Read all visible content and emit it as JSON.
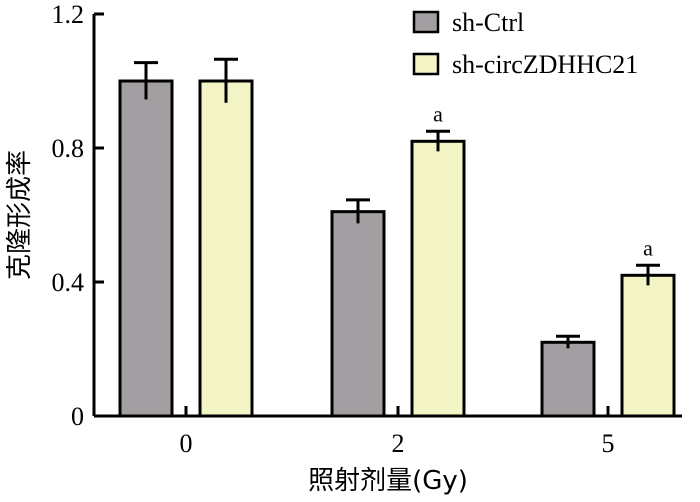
{
  "chart_data": {
    "type": "bar",
    "xlabel": "照射剂量(Gy)",
    "ylabel": "克隆形成率",
    "categories": [
      "0",
      "2",
      "5"
    ],
    "ylim": [
      0,
      1.2
    ],
    "yticks": [
      "0",
      "0.4",
      "0.8",
      "1.2"
    ],
    "legend_position": "top-right",
    "series": [
      {
        "name": "sh-Ctrl",
        "color": "#a39ea1",
        "values": [
          1.0,
          0.61,
          0.22
        ],
        "errors": [
          0.055,
          0.035,
          0.018
        ]
      },
      {
        "name": "sh-circZDHHC21",
        "color": "#f3f4c6",
        "values": [
          1.0,
          0.82,
          0.42
        ],
        "errors": [
          0.065,
          0.03,
          0.03
        ]
      }
    ],
    "annotations": [
      {
        "series": 1,
        "category": 1,
        "text": "a"
      },
      {
        "series": 1,
        "category": 2,
        "text": "a"
      }
    ]
  }
}
